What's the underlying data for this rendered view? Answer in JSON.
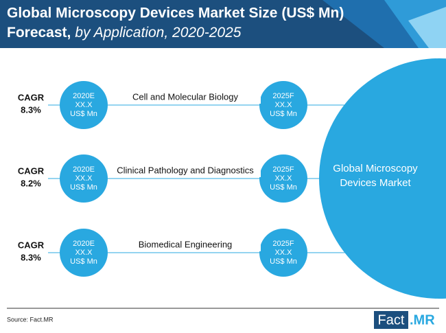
{
  "header": {
    "title_line1": "Global Microscopy Devices Market Size (US$ Mn)",
    "title_line2_bold": "Forecast,",
    "title_line2_italic": "by Application, 2020-2025"
  },
  "rows": [
    {
      "cagr_label": "CAGR",
      "cagr_value": "8.3%",
      "application": "Cell and Molecular Biology",
      "start": {
        "year": "2020E",
        "value": "XX.X",
        "unit": "US$ Mn"
      },
      "end": {
        "year": "2025F",
        "value": "XX.X",
        "unit": "US$ Mn"
      }
    },
    {
      "cagr_label": "CAGR",
      "cagr_value": "8.2%",
      "application": "Clinical Pathology and Diagnostics",
      "start": {
        "year": "2020E",
        "value": "XX.X",
        "unit": "US$ Mn"
      },
      "end": {
        "year": "2025F",
        "value": "XX.X",
        "unit": "US$ Mn"
      }
    },
    {
      "cagr_label": "CAGR",
      "cagr_value": "8.3%",
      "application": "Biomedical Engineering",
      "start": {
        "year": "2020E",
        "value": "XX.X",
        "unit": "US$ Mn"
      },
      "end": {
        "year": "2025F",
        "value": "XX.X",
        "unit": "US$ Mn"
      }
    }
  ],
  "hub": {
    "line1": "Global Microscopy",
    "line2": "Devices Market"
  },
  "footer": {
    "source": "Source: Fact.MR",
    "logo_left": "Fact",
    "logo_right": ".MR"
  }
}
